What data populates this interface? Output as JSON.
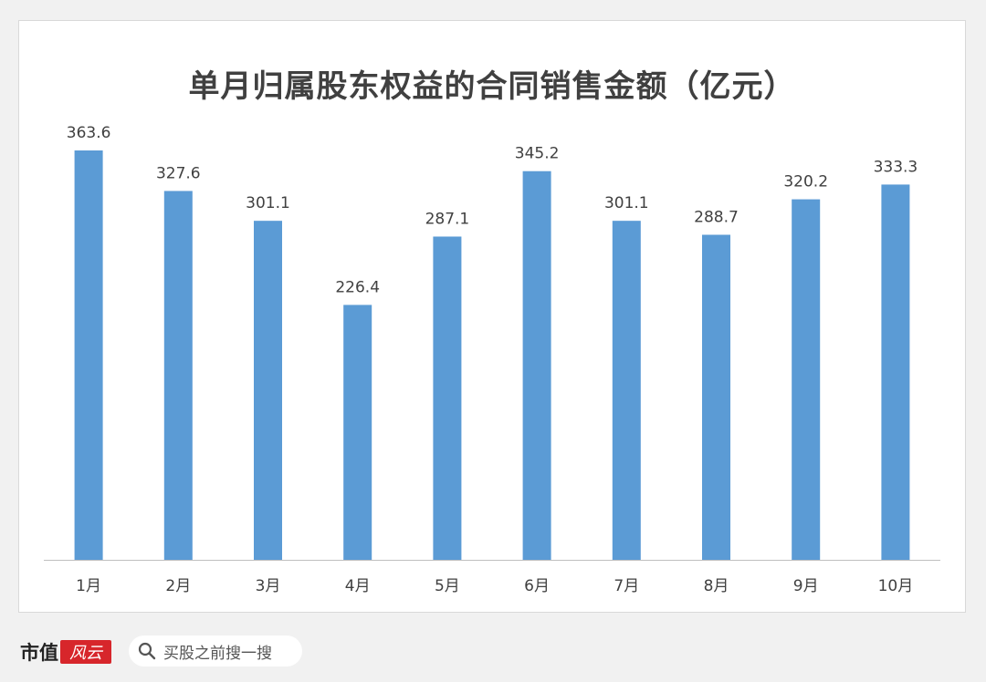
{
  "chart_data": {
    "type": "bar",
    "title": "单月归属股东权益的合同销售金额（亿元）",
    "categories": [
      "1月",
      "2月",
      "3月",
      "4月",
      "5月",
      "6月",
      "7月",
      "8月",
      "9月",
      "10月"
    ],
    "values": [
      363.6,
      327.6,
      301.1,
      226.4,
      287.1,
      345.2,
      301.1,
      288.7,
      320.2,
      333.3
    ],
    "value_labels": [
      "363.6",
      "327.6",
      "301.1",
      "226.4",
      "287.1",
      "345.2",
      "301.1",
      "288.7",
      "320.2",
      "333.3"
    ],
    "ylim": [
      0,
      363.6
    ],
    "grid": false,
    "bar_color": "#5b9bd5"
  },
  "footer": {
    "logo_text": "市值",
    "logo_seal": "风云",
    "search_icon": "search-icon",
    "search_text": "买股之前搜一搜"
  }
}
